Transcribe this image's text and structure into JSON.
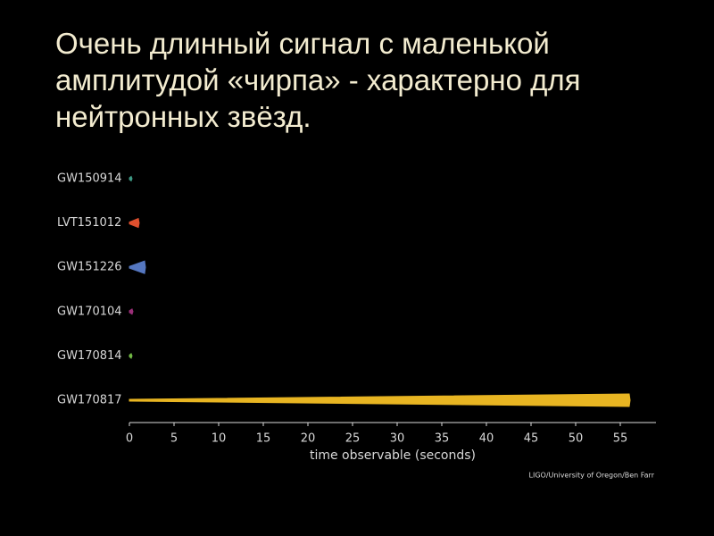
{
  "chart_data": {
    "type": "chirp",
    "title": "Очень длинный сигнал с маленькой амплитудой «чирпа» - характерно для нейтронных звёзд.",
    "categories": [
      "GW150914",
      "LVT151012",
      "GW151226",
      "GW170104",
      "GW170814",
      "GW170817"
    ],
    "series": [
      {
        "values": [
          0.2,
          1,
          1.7,
          0.3,
          0.2,
          56
        ],
        "colors": [
          "#3f9a86",
          "#e0502e",
          "#5577c0",
          "#9a2f78",
          "#72b845",
          "#e8b522"
        ]
      }
    ],
    "xlabel": "time observable (seconds)",
    "xlim": [
      0,
      59
    ],
    "xticks": [
      0,
      5,
      10,
      15,
      20,
      25,
      30,
      35,
      40,
      45,
      50,
      55
    ],
    "credit": "LIGO/University of Oregon/Ben Farr"
  }
}
